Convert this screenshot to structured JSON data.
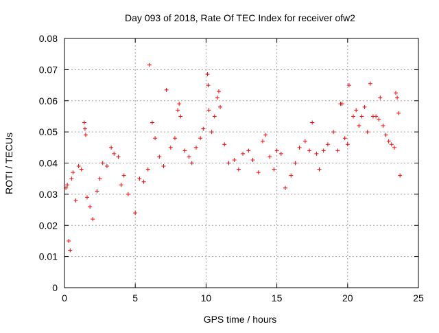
{
  "chart_data": {
    "type": "scatter",
    "title": "Day 093 of 2018, Rate Of TEC Index for receiver ofw2",
    "xlabel": "GPS time / hours",
    "ylabel": "ROTI / TECUs",
    "xlim": [
      0,
      25
    ],
    "ylim": [
      0,
      0.08
    ],
    "x_ticks": [
      "0",
      "5",
      "10",
      "15",
      "20",
      "25"
    ],
    "y_ticks": [
      "0",
      "0.01",
      "0.02",
      "0.03",
      "0.04",
      "0.05",
      "0.06",
      "0.07",
      "0.08"
    ],
    "grid": true,
    "marker": "+",
    "series": [
      {
        "color": "#ff0000",
        "points": [
          [
            0.1,
            0.032
          ],
          [
            0.2,
            0.033
          ],
          [
            0.3,
            0.015
          ],
          [
            0.4,
            0.012
          ],
          [
            0.5,
            0.035
          ],
          [
            0.6,
            0.037
          ],
          [
            0.8,
            0.028
          ],
          [
            1.0,
            0.039
          ],
          [
            1.2,
            0.038
          ],
          [
            1.4,
            0.053
          ],
          [
            1.45,
            0.051
          ],
          [
            1.5,
            0.049
          ],
          [
            1.6,
            0.029
          ],
          [
            1.8,
            0.026
          ],
          [
            2.0,
            0.022
          ],
          [
            2.3,
            0.031
          ],
          [
            2.5,
            0.035
          ],
          [
            2.7,
            0.04
          ],
          [
            3.0,
            0.039
          ],
          [
            3.3,
            0.045
          ],
          [
            3.5,
            0.043
          ],
          [
            3.8,
            0.042
          ],
          [
            4.0,
            0.033
          ],
          [
            4.2,
            0.036
          ],
          [
            4.5,
            0.03
          ],
          [
            5.0,
            0.024
          ],
          [
            5.3,
            0.035
          ],
          [
            5.6,
            0.034
          ],
          [
            5.9,
            0.038
          ],
          [
            6.0,
            0.0715
          ],
          [
            6.2,
            0.053
          ],
          [
            6.4,
            0.048
          ],
          [
            6.7,
            0.042
          ],
          [
            7.0,
            0.039
          ],
          [
            7.2,
            0.0635
          ],
          [
            7.5,
            0.045
          ],
          [
            7.8,
            0.048
          ],
          [
            8.0,
            0.057
          ],
          [
            8.1,
            0.059
          ],
          [
            8.2,
            0.055
          ],
          [
            8.5,
            0.044
          ],
          [
            8.8,
            0.042
          ],
          [
            9.0,
            0.04
          ],
          [
            9.3,
            0.045
          ],
          [
            9.6,
            0.048
          ],
          [
            9.8,
            0.051
          ],
          [
            10.1,
            0.0685
          ],
          [
            10.15,
            0.065
          ],
          [
            10.2,
            0.057
          ],
          [
            10.4,
            0.05
          ],
          [
            10.6,
            0.055
          ],
          [
            10.8,
            0.061
          ],
          [
            10.9,
            0.063
          ],
          [
            11.0,
            0.058
          ],
          [
            11.3,
            0.046
          ],
          [
            11.6,
            0.04
          ],
          [
            12.0,
            0.041
          ],
          [
            12.3,
            0.038
          ],
          [
            12.6,
            0.043
          ],
          [
            13.0,
            0.044
          ],
          [
            13.3,
            0.041
          ],
          [
            13.7,
            0.037
          ],
          [
            14.0,
            0.047
          ],
          [
            14.2,
            0.049
          ],
          [
            14.5,
            0.042
          ],
          [
            14.8,
            0.038
          ],
          [
            15.0,
            0.044
          ],
          [
            15.3,
            0.043
          ],
          [
            15.6,
            0.032
          ],
          [
            16.0,
            0.036
          ],
          [
            16.3,
            0.04
          ],
          [
            16.6,
            0.045
          ],
          [
            17.0,
            0.047
          ],
          [
            17.3,
            0.044
          ],
          [
            17.5,
            0.053
          ],
          [
            17.8,
            0.043
          ],
          [
            18.0,
            0.038
          ],
          [
            18.3,
            0.044
          ],
          [
            18.6,
            0.046
          ],
          [
            19.0,
            0.05
          ],
          [
            19.3,
            0.044
          ],
          [
            19.5,
            0.059
          ],
          [
            19.6,
            0.059
          ],
          [
            19.8,
            0.048
          ],
          [
            20.0,
            0.046
          ],
          [
            20.1,
            0.065
          ],
          [
            20.4,
            0.055
          ],
          [
            20.6,
            0.057
          ],
          [
            20.8,
            0.052
          ],
          [
            21.0,
            0.055
          ],
          [
            21.2,
            0.058
          ],
          [
            21.4,
            0.05
          ],
          [
            21.6,
            0.0655
          ],
          [
            21.8,
            0.055
          ],
          [
            22.0,
            0.055
          ],
          [
            22.2,
            0.054
          ],
          [
            22.3,
            0.061
          ],
          [
            22.5,
            0.052
          ],
          [
            22.7,
            0.049
          ],
          [
            22.9,
            0.047
          ],
          [
            23.1,
            0.046
          ],
          [
            23.3,
            0.045
          ],
          [
            23.4,
            0.0625
          ],
          [
            23.5,
            0.061
          ],
          [
            23.6,
            0.056
          ],
          [
            23.7,
            0.036
          ]
        ]
      }
    ]
  }
}
